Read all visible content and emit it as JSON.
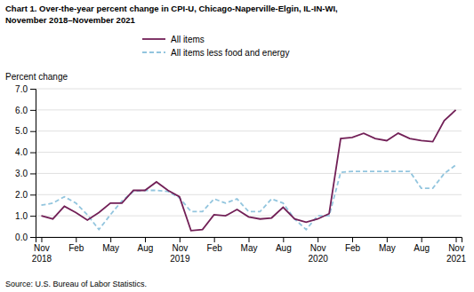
{
  "chart_data": {
    "type": "line",
    "title": "Chart 1. Over-the-year percent change in CPI-U, Chicago-Naperville-Elgin, IL-IN-WI,",
    "subtitle": "November 2018–November 2021",
    "y_label": "Percent change",
    "source": "Source: U.S. Bureau of Labor Statistics.",
    "categories": [
      "Nov\n2018",
      null,
      null,
      "Feb",
      null,
      null,
      "May",
      null,
      null,
      "Aug",
      null,
      null,
      "Nov\n2019",
      null,
      null,
      "Feb",
      null,
      null,
      "May",
      null,
      null,
      "Aug",
      null,
      null,
      "Nov\n2020",
      null,
      null,
      "Feb",
      null,
      null,
      "May",
      null,
      null,
      "Aug",
      null,
      null,
      "Nov\n2021"
    ],
    "series": [
      {
        "name": "All items",
        "color": "#722057",
        "line_style": "solid",
        "values": [
          1.0,
          0.85,
          1.45,
          1.15,
          0.8,
          1.15,
          1.6,
          1.6,
          2.2,
          2.2,
          2.6,
          2.2,
          1.9,
          0.3,
          0.35,
          1.05,
          1.0,
          1.3,
          0.95,
          0.85,
          0.9,
          1.4,
          0.85,
          0.7,
          0.85,
          1.1,
          4.65,
          4.7,
          4.9,
          4.65,
          4.55,
          4.9,
          4.65,
          4.55,
          4.5,
          5.5,
          6.0
        ]
      },
      {
        "name": "All items less food and energy",
        "color": "#92C5DE",
        "line_style": "dashed",
        "values": [
          1.5,
          1.6,
          1.9,
          1.6,
          1.05,
          0.35,
          1.05,
          1.7,
          2.15,
          2.2,
          2.2,
          2.15,
          1.85,
          1.2,
          1.2,
          1.8,
          1.6,
          1.8,
          1.2,
          1.2,
          1.8,
          1.6,
          0.85,
          0.35,
          1.0,
          1.0,
          3.05,
          3.1,
          3.1,
          3.1,
          3.1,
          3.1,
          3.1,
          2.3,
          2.3,
          3.0,
          3.4
        ]
      }
    ],
    "ylim": [
      0.0,
      7.0
    ],
    "yticks": [
      {
        "value": 0.0,
        "label": "0.0"
      },
      {
        "value": 1.0,
        "label": "1.0"
      },
      {
        "value": 2.0,
        "label": "2.0"
      },
      {
        "value": 3.0,
        "label": "3.0"
      },
      {
        "value": 4.0,
        "label": "4.0"
      },
      {
        "value": 5.0,
        "label": "5.0"
      },
      {
        "value": 6.0,
        "label": "6.0"
      },
      {
        "value": 7.0,
        "label": "7.0"
      }
    ],
    "grid": true,
    "legend": "top"
  }
}
